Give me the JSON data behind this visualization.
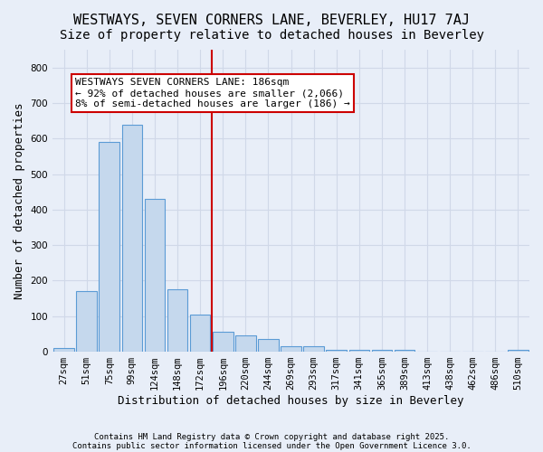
{
  "title1": "WESTWAYS, SEVEN CORNERS LANE, BEVERLEY, HU17 7AJ",
  "title2": "Size of property relative to detached houses in Beverley",
  "xlabel": "Distribution of detached houses by size in Beverley",
  "ylabel": "Number of detached properties",
  "bar_labels": [
    "27sqm",
    "51sqm",
    "75sqm",
    "99sqm",
    "124sqm",
    "148sqm",
    "172sqm",
    "196sqm",
    "220sqm",
    "244sqm",
    "269sqm",
    "293sqm",
    "317sqm",
    "341sqm",
    "365sqm",
    "389sqm",
    "413sqm",
    "438sqm",
    "462sqm",
    "486sqm",
    "510sqm"
  ],
  "bar_values": [
    10,
    170,
    590,
    640,
    430,
    175,
    105,
    55,
    45,
    35,
    15,
    15,
    5,
    5,
    5,
    5,
    0,
    0,
    0,
    0,
    5
  ],
  "bar_color": "#c5d8ed",
  "bar_edge_color": "#5b9bd5",
  "vline_x": 6.5,
  "vline_color": "#cc0000",
  "annotation_text": "WESTWAYS SEVEN CORNERS LANE: 186sqm\n← 92% of detached houses are smaller (2,066)\n8% of semi-detached houses are larger (186) →",
  "annotation_box_color": "#ffffff",
  "annotation_box_edge": "#cc0000",
  "ylim": [
    0,
    850
  ],
  "yticks": [
    0,
    100,
    200,
    300,
    400,
    500,
    600,
    700,
    800
  ],
  "grid_color": "#d0d8e8",
  "bg_color": "#e8eef8",
  "footnote1": "Contains HM Land Registry data © Crown copyright and database right 2025.",
  "footnote2": "Contains public sector information licensed under the Open Government Licence 3.0.",
  "title_fontsize": 11,
  "subtitle_fontsize": 10,
  "tick_fontsize": 7.5,
  "label_fontsize": 9,
  "annot_fontsize": 8
}
